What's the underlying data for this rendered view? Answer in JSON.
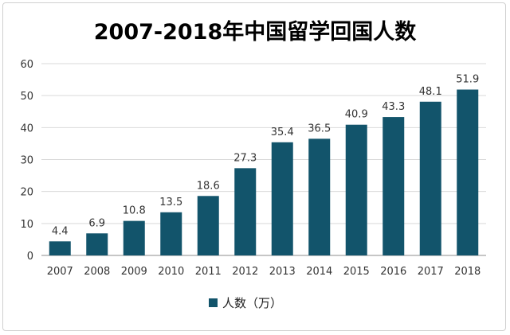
{
  "chart_data": {
    "type": "bar",
    "title": "2007-2018年中国留学回国人数",
    "categories": [
      "2007",
      "2008",
      "2009",
      "2010",
      "2011",
      "2012",
      "2013",
      "2014",
      "2015",
      "2016",
      "2017",
      "2018"
    ],
    "series": [
      {
        "name": "人数（万）",
        "values": [
          4.4,
          6.9,
          10.8,
          13.5,
          18.6,
          27.3,
          35.4,
          36.5,
          40.9,
          43.3,
          48.1,
          51.9
        ],
        "labels": [
          "4.4",
          "6.9",
          "10.8",
          "13.5",
          "18.6",
          "27.3",
          "35.4",
          "36.5",
          "40.9",
          "43.3",
          "48.1",
          "51.9"
        ]
      }
    ],
    "yticks": [
      "0",
      "10",
      "20",
      "30",
      "40",
      "50",
      "60"
    ],
    "ylim": [
      0,
      60
    ],
    "grid": true,
    "legend": "bottom",
    "bar_color": "#12546b"
  }
}
